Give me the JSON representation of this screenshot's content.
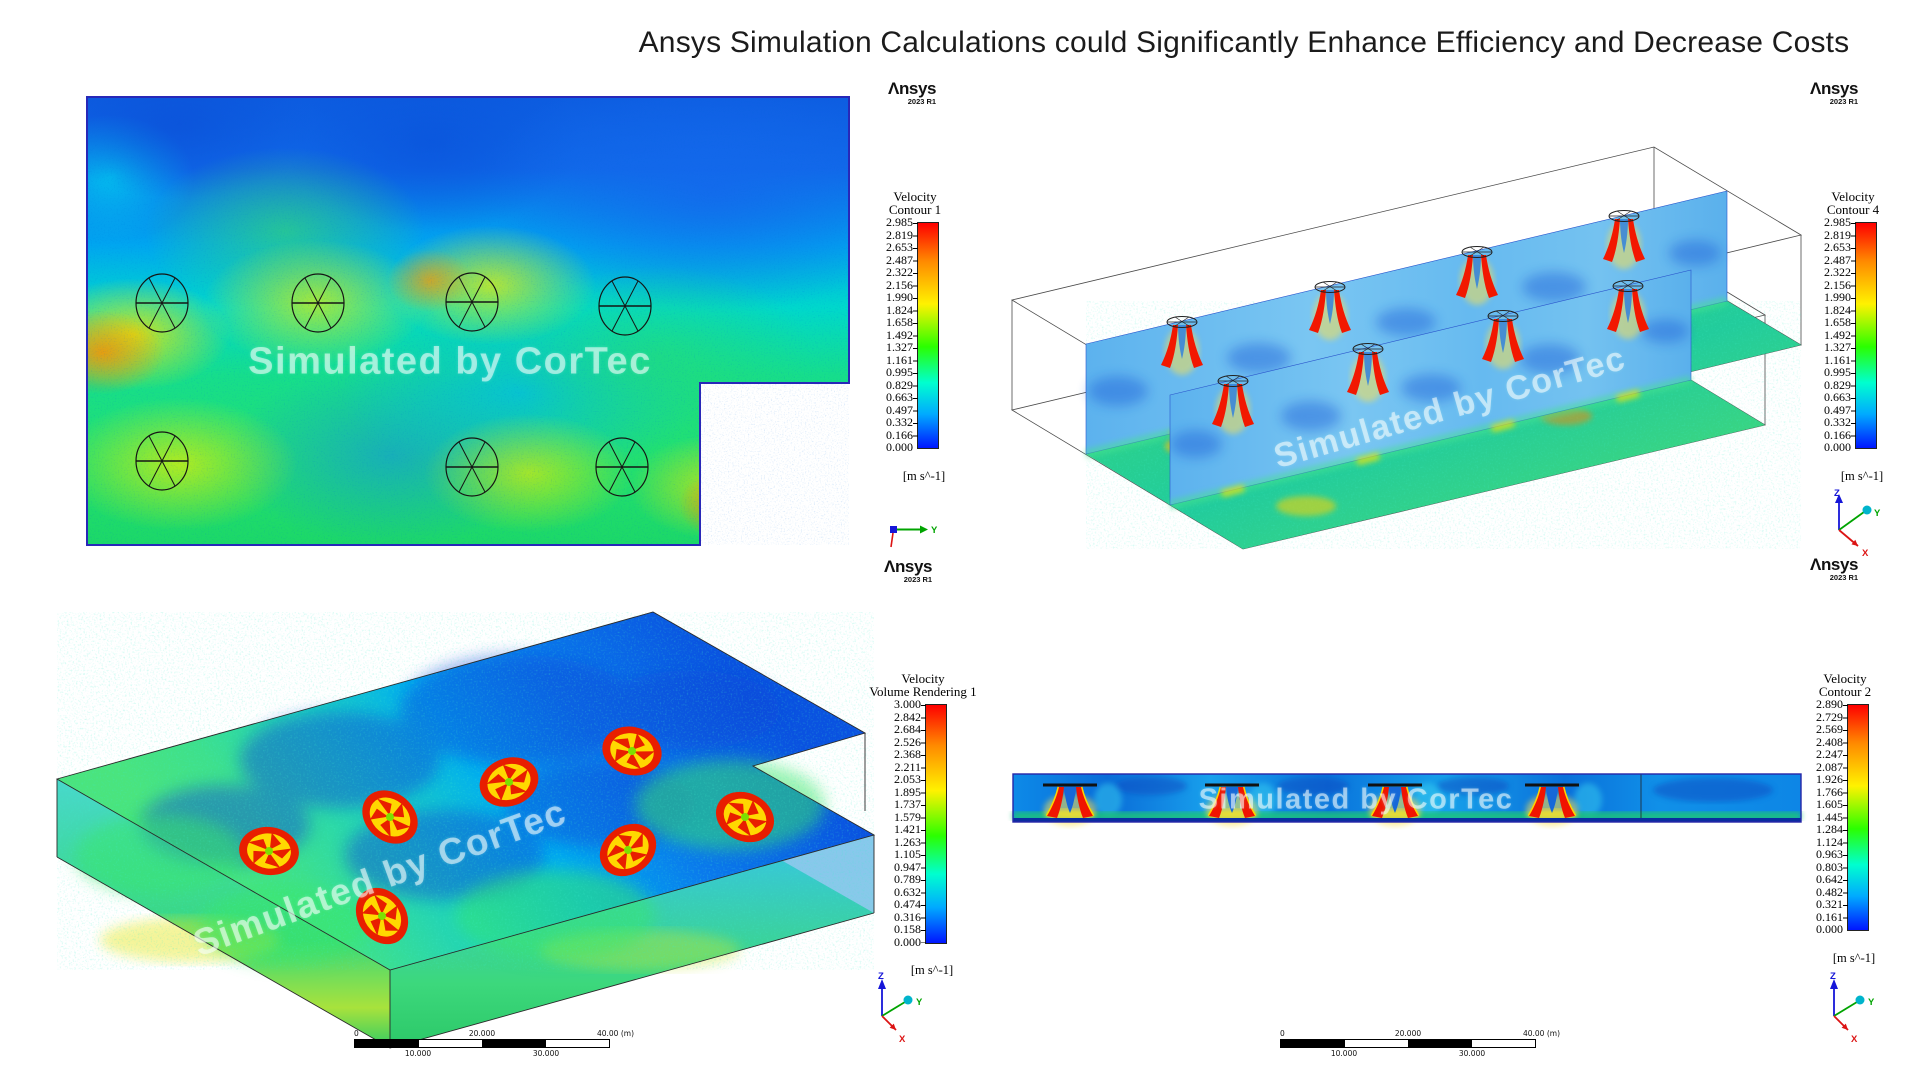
{
  "title": "Ansys Simulation Calculations could Significantly Enhance Efficiency and Decrease Costs",
  "watermark": "Simulated by CorTec",
  "brand": {
    "name": "Ansys",
    "display": "Λnsys",
    "version": "2023 R1"
  },
  "axis_triads": {
    "x": "X",
    "y": "Y",
    "z": "Z"
  },
  "panels": {
    "contour1": {
      "label": "Velocity Contour 1",
      "legend": {
        "title": "Velocity",
        "subtitle": "Contour 1",
        "unit": "[m s^-1]",
        "values": [
          "2.985",
          "2.819",
          "2.653",
          "2.487",
          "2.322",
          "2.156",
          "1.990",
          "1.824",
          "1.658",
          "1.492",
          "1.327",
          "1.161",
          "0.995",
          "0.829",
          "0.663",
          "0.497",
          "0.332",
          "0.166",
          "0.000"
        ]
      }
    },
    "contour4": {
      "label": "Velocity Contour 4",
      "legend": {
        "title": "Velocity",
        "subtitle": "Contour 4",
        "unit": "[m s^-1]",
        "values": [
          "2.985",
          "2.819",
          "2.653",
          "2.487",
          "2.322",
          "2.156",
          "1.990",
          "1.824",
          "1.658",
          "1.492",
          "1.327",
          "1.161",
          "0.995",
          "0.829",
          "0.663",
          "0.497",
          "0.332",
          "0.166",
          "0.000"
        ]
      }
    },
    "volume_rendering1": {
      "label": "Velocity Volume Rendering 1",
      "legend": {
        "title": "Velocity",
        "subtitle": "Volume Rendering 1",
        "unit": "[m s^-1]",
        "values": [
          "3.000",
          "2.842",
          "2.684",
          "2.526",
          "2.368",
          "2.211",
          "2.053",
          "1.895",
          "1.737",
          "1.579",
          "1.421",
          "1.263",
          "1.105",
          "0.947",
          "0.789",
          "0.632",
          "0.474",
          "0.316",
          "0.158",
          "0.000"
        ]
      },
      "scale_bar": {
        "above": [
          "0",
          "20.000",
          "40.00 (m)"
        ],
        "below": [
          "10.000",
          "30.000"
        ]
      }
    },
    "contour2": {
      "label": "Velocity Contour 2",
      "legend": {
        "title": "Velocity",
        "subtitle": "Contour 2",
        "unit": "[m s^-1]",
        "values": [
          "2.890",
          "2.729",
          "2.569",
          "2.408",
          "2.247",
          "2.087",
          "1.926",
          "1.766",
          "1.605",
          "1.445",
          "1.284",
          "1.124",
          "0.963",
          "0.803",
          "0.642",
          "0.482",
          "0.321",
          "0.161",
          "0.000"
        ]
      },
      "scale_bar": {
        "above": [
          "0",
          "20.000",
          "40.00 (m)"
        ],
        "below": [
          "10.000",
          "30.000"
        ]
      }
    }
  },
  "chart_data": [
    {
      "type": "heatmap",
      "title": "Velocity Contour 1",
      "view": "2D plan view of plant room with 7 fan outlines",
      "units": "m s^-1",
      "range": [
        0.0,
        2.985
      ],
      "levels": [
        0.0,
        0.166,
        0.332,
        0.497,
        0.663,
        0.829,
        0.995,
        1.161,
        1.327,
        1.492,
        1.658,
        1.824,
        1.99,
        2.156,
        2.322,
        2.487,
        2.653,
        2.819,
        2.985
      ],
      "colormap": [
        "#0016ff",
        "#00aaff",
        "#00ffcf",
        "#2bff00",
        "#fff200",
        "#ff8a00",
        "#fe0000"
      ],
      "fan_count": 7
    },
    {
      "type": "heatmap",
      "title": "Velocity Contour 4",
      "view": "3D isometric box with two vertical contour slices and colored floor, 8 fan plumes",
      "units": "m s^-1",
      "range": [
        0.0,
        2.985
      ],
      "levels": [
        0.0,
        0.166,
        0.332,
        0.497,
        0.663,
        0.829,
        0.995,
        1.161,
        1.327,
        1.492,
        1.658,
        1.824,
        1.99,
        2.156,
        2.322,
        2.487,
        2.653,
        2.819,
        2.985
      ],
      "colormap": [
        "#0016ff",
        "#00aaff",
        "#00ffcf",
        "#2bff00",
        "#fff200",
        "#ff8a00",
        "#fe0000"
      ],
      "fan_count": 8
    },
    {
      "type": "heatmap",
      "title": "Velocity Volume Rendering 1",
      "view": "3D isometric volume rendering slab with 7 fan pinwheels",
      "units": "m s^-1",
      "range": [
        0.0,
        3.0
      ],
      "levels": [
        0.0,
        0.158,
        0.316,
        0.474,
        0.632,
        0.789,
        0.947,
        1.105,
        1.263,
        1.421,
        1.579,
        1.737,
        1.895,
        2.053,
        2.211,
        2.368,
        2.526,
        2.684,
        2.842,
        3.0
      ],
      "colormap": [
        "#0016ff",
        "#00aaff",
        "#00ffcf",
        "#2bff00",
        "#fff200",
        "#ff8a00",
        "#fe0000"
      ],
      "fan_count": 7,
      "scale_bar_m": [
        0,
        10,
        20,
        30,
        40
      ]
    },
    {
      "type": "heatmap",
      "title": "Velocity Contour 2",
      "view": "2D side elevation slice with 4 fan plume pairs",
      "units": "m s^-1",
      "range": [
        0.0,
        2.89
      ],
      "levels": [
        0.0,
        0.161,
        0.321,
        0.482,
        0.642,
        0.803,
        0.963,
        1.124,
        1.284,
        1.445,
        1.605,
        1.766,
        1.926,
        2.087,
        2.247,
        2.408,
        2.569,
        2.729,
        2.89
      ],
      "colormap": [
        "#0016ff",
        "#00aaff",
        "#00ffcf",
        "#2bff00",
        "#fff200",
        "#ff8a00",
        "#fe0000"
      ],
      "fan_count": 4,
      "scale_bar_m": [
        0,
        10,
        20,
        30,
        40
      ]
    }
  ]
}
